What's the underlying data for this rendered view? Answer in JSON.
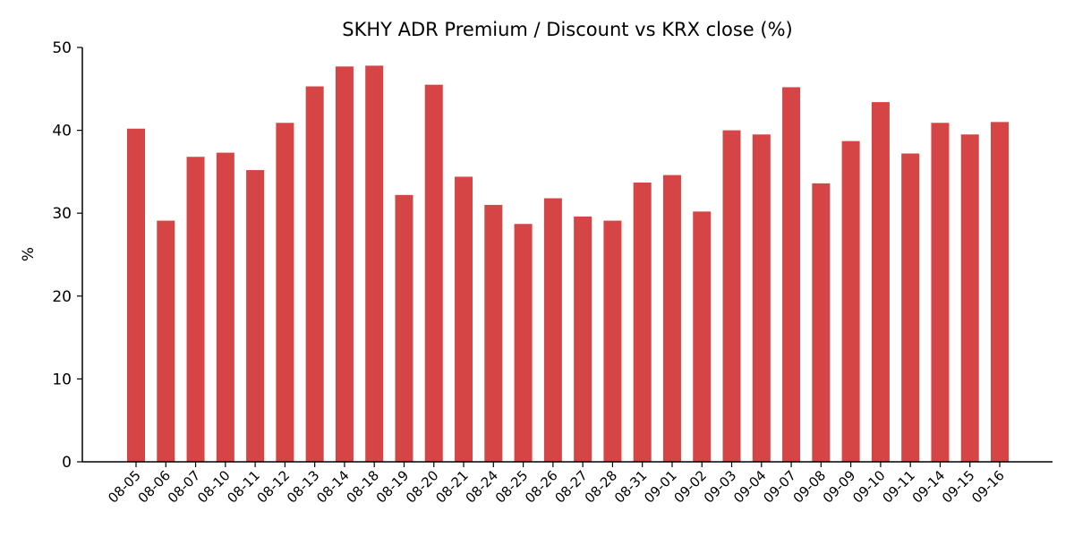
{
  "chart_data": {
    "type": "bar",
    "title": "SKHY ADR Premium / Discount vs KRX close (%)",
    "xlabel": "",
    "ylabel": "%",
    "ylim": [
      0,
      50
    ],
    "yticks": [
      0,
      10,
      20,
      30,
      40,
      50
    ],
    "grid": false,
    "bar_color": "#d64545",
    "categories": [
      "08-05",
      "08-06",
      "08-07",
      "08-10",
      "08-11",
      "08-12",
      "08-13",
      "08-14",
      "08-18",
      "08-19",
      "08-20",
      "08-21",
      "08-24",
      "08-25",
      "08-26",
      "08-27",
      "08-28",
      "08-31",
      "09-01",
      "09-02",
      "09-03",
      "09-04",
      "09-07",
      "09-08",
      "09-09",
      "09-10",
      "09-11",
      "09-14",
      "09-15",
      "09-16"
    ],
    "values": [
      40.2,
      29.1,
      36.8,
      37.3,
      35.2,
      40.9,
      45.3,
      47.7,
      47.8,
      32.2,
      45.5,
      34.4,
      31.0,
      28.7,
      31.8,
      29.6,
      29.1,
      33.7,
      34.6,
      30.2,
      40.0,
      39.5,
      45.2,
      33.6,
      38.7,
      43.4,
      37.2,
      40.9,
      39.5,
      41.0
    ]
  }
}
